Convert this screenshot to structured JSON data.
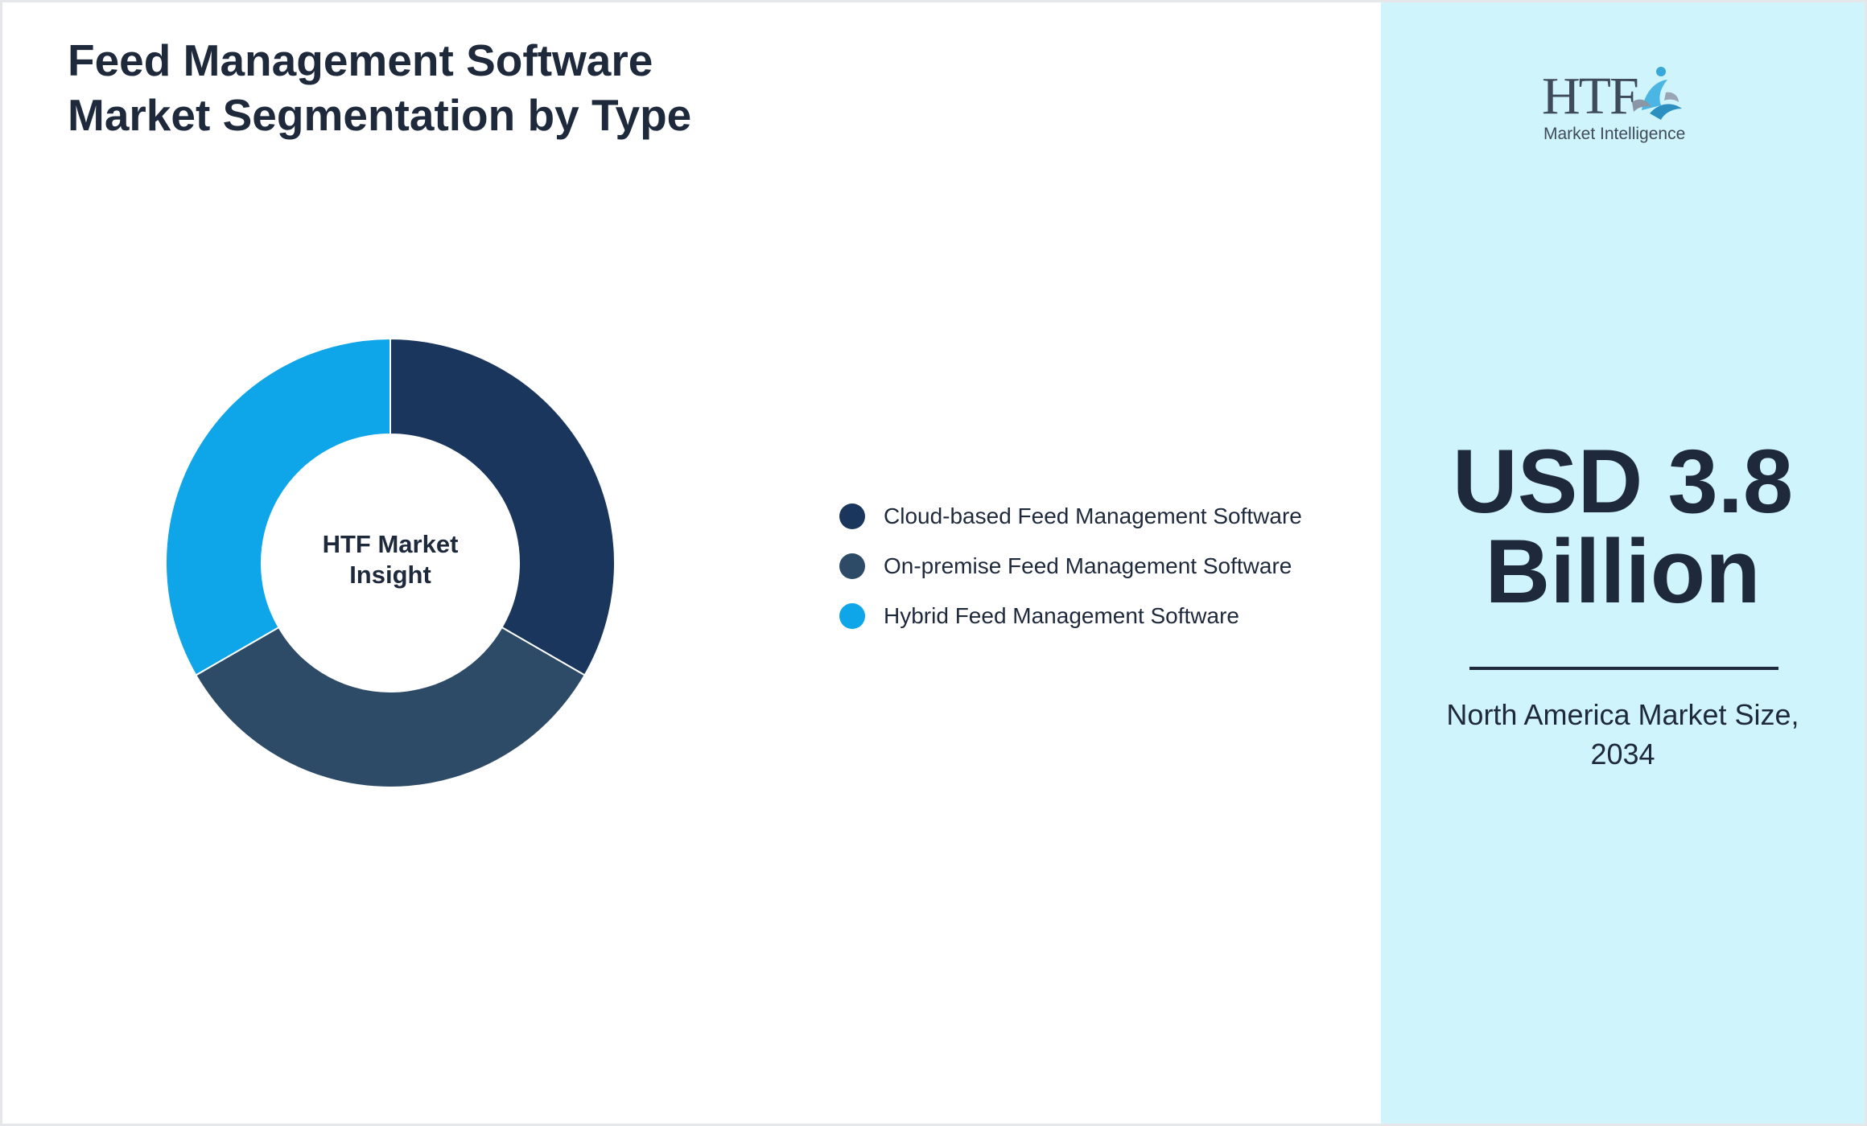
{
  "header": {
    "title_line1": "Feed Management Software",
    "title_line2": "Market Segmentation by Type"
  },
  "chart_data": {
    "type": "pie",
    "donut": true,
    "center_label_line1": "HTF Market",
    "center_label_line2": "Insight",
    "categories": [
      "Cloud-based Feed Management Software",
      "On-premise Feed Management Software",
      "Hybrid Feed Management Software"
    ],
    "values": [
      33.3,
      33.3,
      33.3
    ],
    "colors": [
      "#1a365d",
      "#2d4a66",
      "#0ea5e9"
    ],
    "legend_position": "right"
  },
  "sidebar": {
    "logo_text": "HTF",
    "logo_tagline": "Market Intelligence",
    "value_line1": "USD 3.8",
    "value_line2": "Billion",
    "caption_line1": "North America Market Size,",
    "caption_line2": "2034",
    "background_color": "#cff4fc"
  }
}
